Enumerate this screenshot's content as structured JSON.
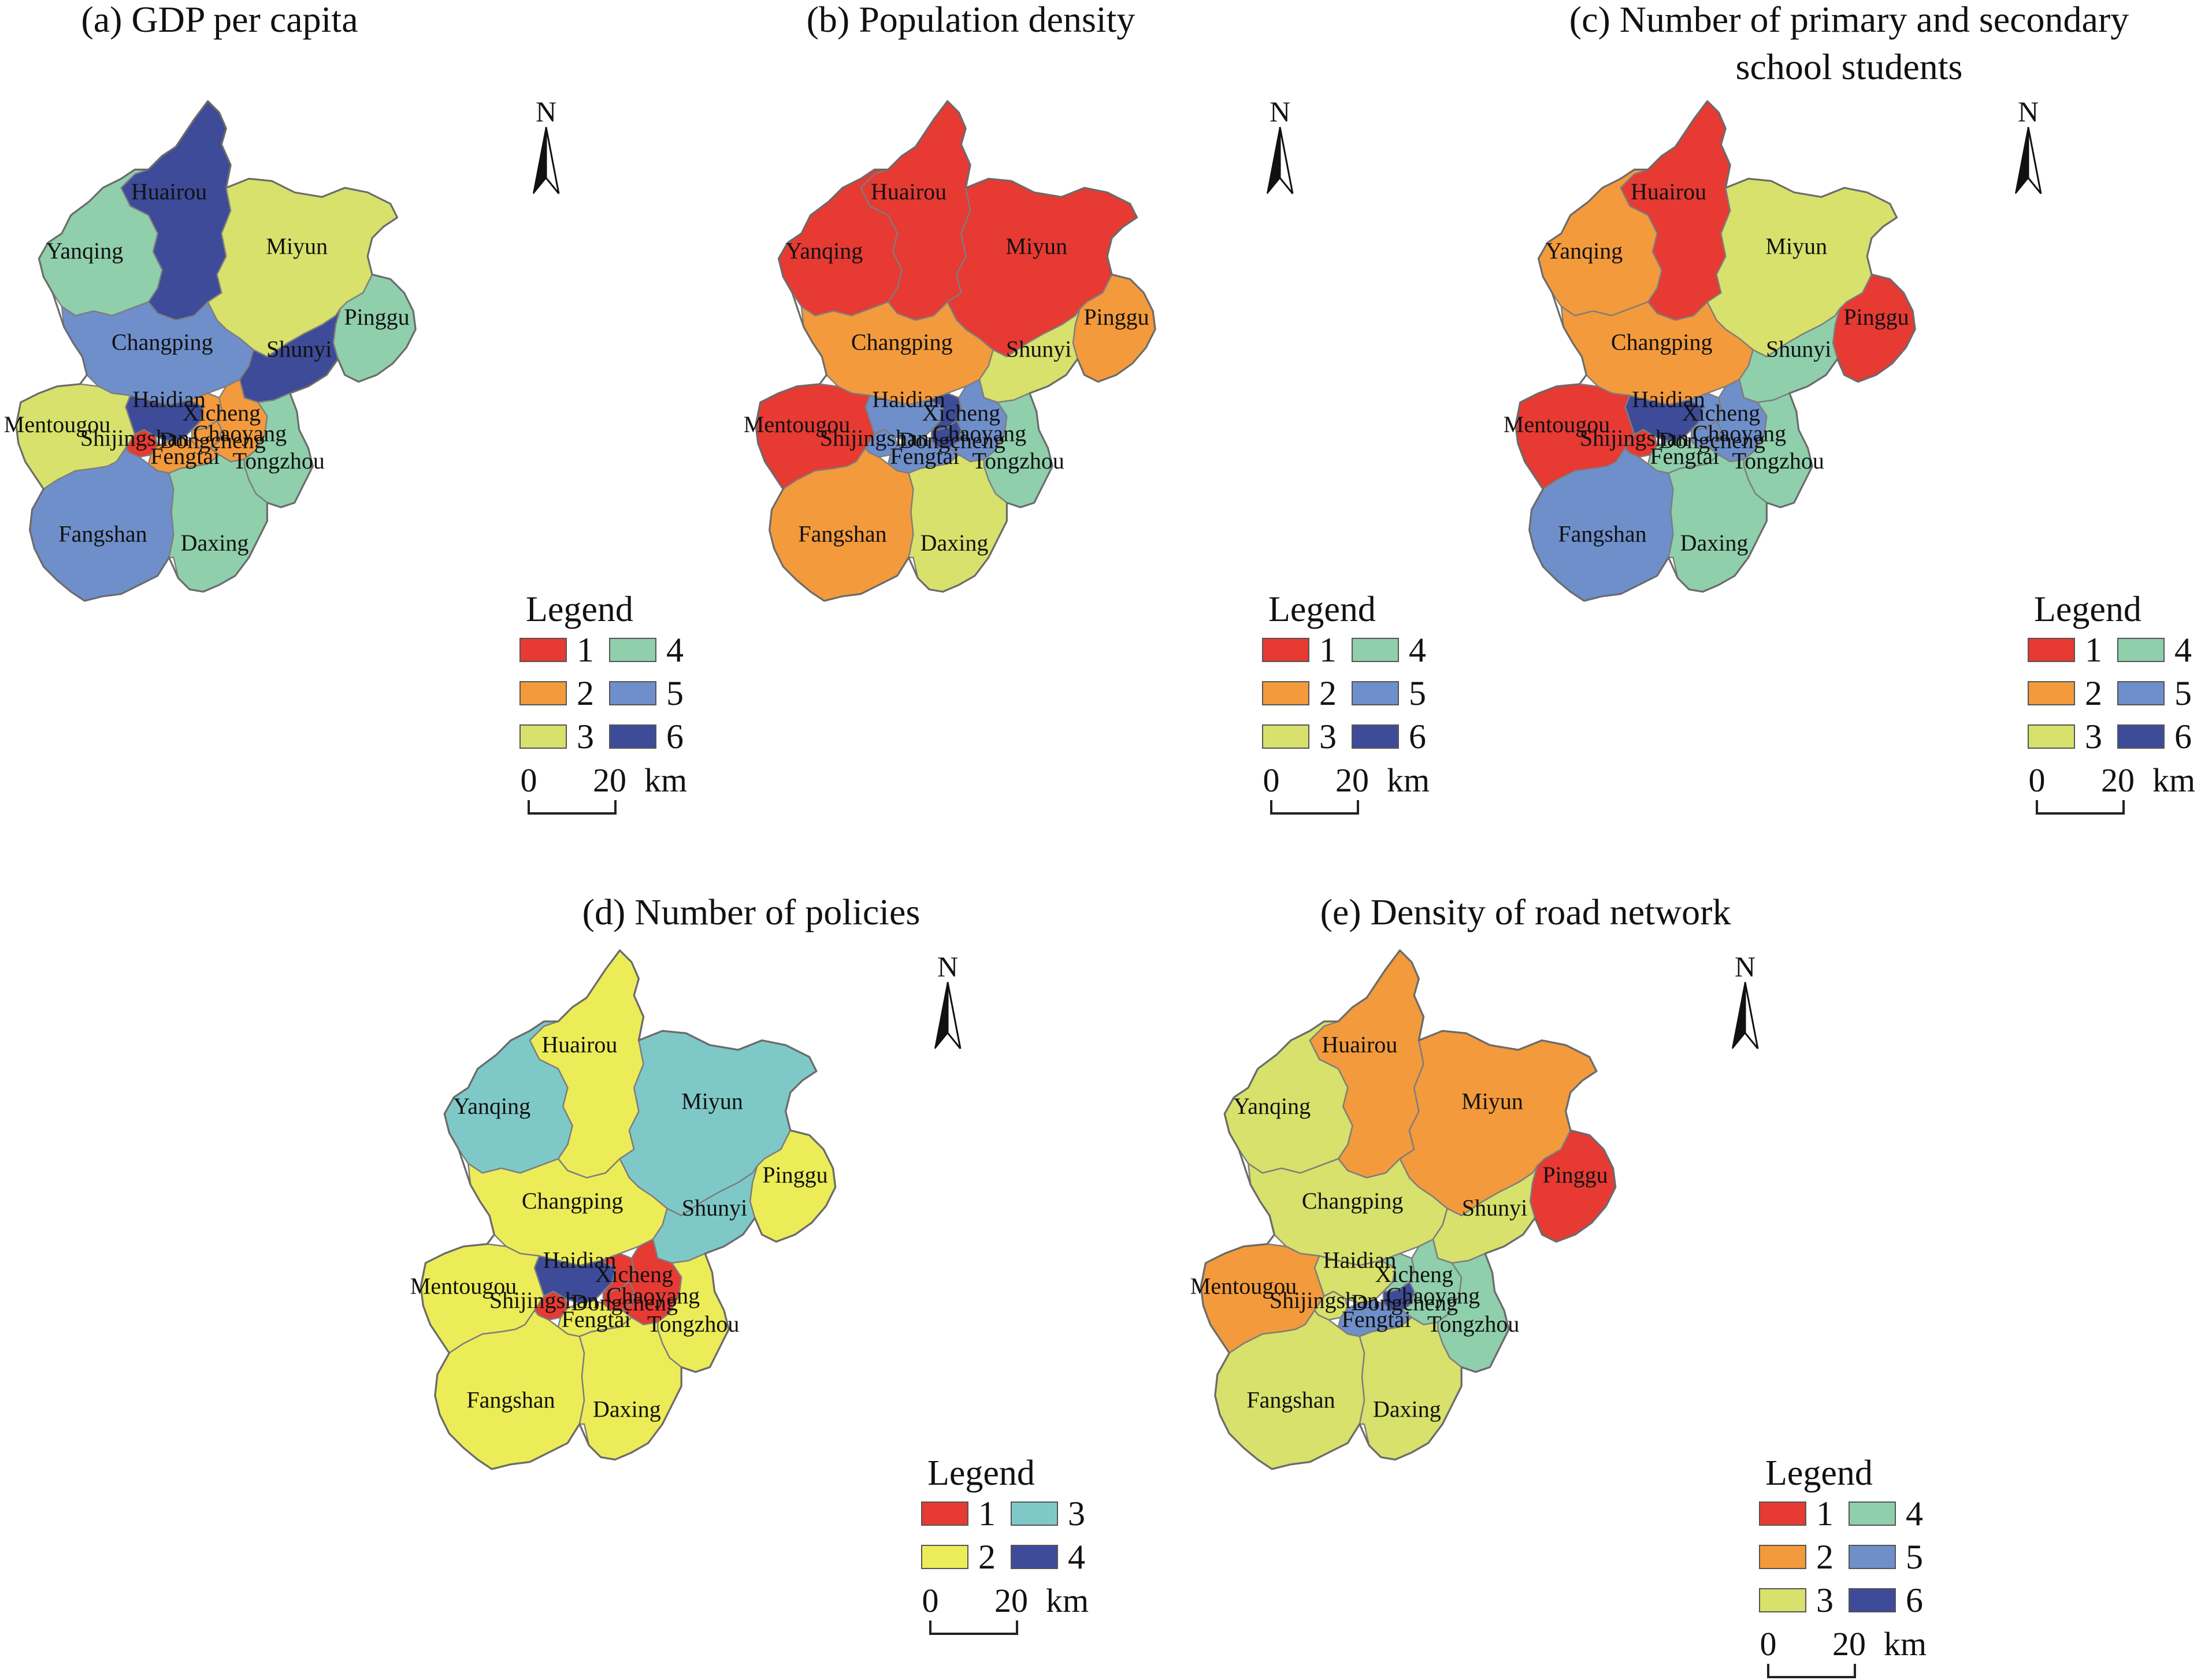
{
  "legend_colors": {
    "1": "#e63a33",
    "2": "#f39a3c",
    "3": "#d7e16b",
    "4": "#8fcfab",
    "5": "#6f8fcb",
    "6": "#3d4b99"
  },
  "policy_colors": {
    "1": "#e63a33",
    "2": "#ecec58",
    "3": "#7ec9c8",
    "4": "#3d4b99"
  },
  "common": {
    "legend_title": "Legend",
    "north": "N",
    "scale_zero": "0",
    "scale_twenty": "20",
    "scale_unit": "km"
  },
  "panels": [
    {
      "id": "a",
      "title": "(a) GDP per capita",
      "title2": "",
      "scheme": "legend_colors",
      "classes": [
        "1",
        "2",
        "3",
        "4",
        "5",
        "6"
      ],
      "values": {
        "Huairou": 6,
        "Miyun": 3,
        "Yanqing": 4,
        "Pinggu": 4,
        "Changping": 5,
        "Shunyi": 6,
        "Haidian": 6,
        "Xicheng": 2,
        "Mentougou": 3,
        "Shijingshan": 1,
        "Chaoyang": 2,
        "Dongcheng": 2,
        "Fengtai": 2,
        "Tongzhou": 4,
        "Fangshan": 5,
        "Daxing": 4
      }
    },
    {
      "id": "b",
      "title": "(b) Population density",
      "title2": "",
      "scheme": "legend_colors",
      "classes": [
        "1",
        "2",
        "3",
        "4",
        "5",
        "6"
      ],
      "values": {
        "Huairou": 1,
        "Miyun": 1,
        "Yanqing": 1,
        "Pinggu": 2,
        "Changping": 2,
        "Shunyi": 3,
        "Haidian": 5,
        "Xicheng": 6,
        "Mentougou": 1,
        "Shijingshan": 5,
        "Chaoyang": 5,
        "Dongcheng": 6,
        "Fengtai": 5,
        "Tongzhou": 4,
        "Fangshan": 2,
        "Daxing": 3
      }
    },
    {
      "id": "c",
      "title": "(c) Number of primary and secondary",
      "title2": "school students",
      "scheme": "legend_colors",
      "classes": [
        "1",
        "2",
        "3",
        "4",
        "5",
        "6"
      ],
      "values": {
        "Huairou": 1,
        "Miyun": 3,
        "Yanqing": 2,
        "Pinggu": 1,
        "Changping": 2,
        "Shunyi": 4,
        "Haidian": 6,
        "Xicheng": 5,
        "Mentougou": 1,
        "Shijingshan": 1,
        "Chaoyang": 5,
        "Dongcheng": 5,
        "Fengtai": 4,
        "Tongzhou": 4,
        "Fangshan": 5,
        "Daxing": 4
      }
    },
    {
      "id": "d",
      "title": "(d) Number of policies",
      "title2": "",
      "scheme": "policy_colors",
      "classes": [
        "1",
        "2",
        "3",
        "4"
      ],
      "values": {
        "Huairou": 2,
        "Miyun": 3,
        "Yanqing": 3,
        "Pinggu": 2,
        "Changping": 2,
        "Shunyi": 3,
        "Haidian": 4,
        "Xicheng": 1,
        "Mentougou": 2,
        "Shijingshan": 1,
        "Chaoyang": 1,
        "Dongcheng": 1,
        "Fengtai": 2,
        "Tongzhou": 2,
        "Fangshan": 2,
        "Daxing": 2
      }
    },
    {
      "id": "e",
      "title": "(e) Density of road network",
      "title2": "",
      "scheme": "legend_colors",
      "classes": [
        "1",
        "2",
        "3",
        "4",
        "5",
        "6"
      ],
      "values": {
        "Huairou": 2,
        "Miyun": 2,
        "Yanqing": 3,
        "Pinggu": 1,
        "Changping": 3,
        "Shunyi": 3,
        "Haidian": 3,
        "Xicheng": 4,
        "Mentougou": 2,
        "Shijingshan": 3,
        "Chaoyang": 4,
        "Dongcheng": 6,
        "Fengtai": 5,
        "Tongzhou": 4,
        "Fangshan": 3,
        "Daxing": 3
      }
    }
  ],
  "district_names": [
    "Huairou",
    "Miyun",
    "Yanqing",
    "Pinggu",
    "Changping",
    "Shunyi",
    "Haidian",
    "Xicheng",
    "Mentougou",
    "Shijingshan",
    "Chaoyang",
    "Dongcheng",
    "Fengtai",
    "Tongzhou",
    "Fangshan",
    "Daxing"
  ]
}
